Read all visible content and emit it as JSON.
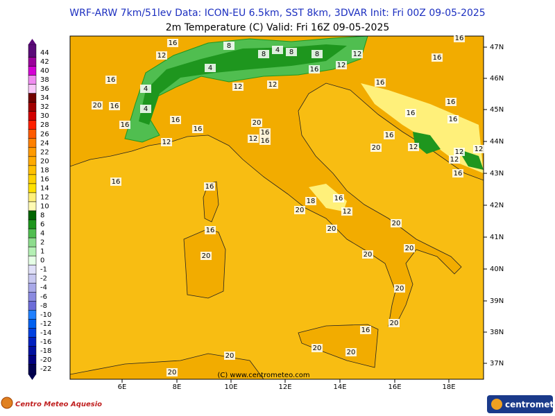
{
  "header": {
    "line1": "WRF-ARW 7km/51lev  Data: ICON-EU 6.5km, SST 8km, 3DVAR  Init: Fri 00Z 09-05-2025",
    "line2": "2m Temperature (C)  Valid: Fri 16Z 09-05-2025"
  },
  "colorbar": {
    "labels": [
      44,
      42,
      40,
      38,
      36,
      34,
      32,
      30,
      28,
      26,
      24,
      22,
      20,
      18,
      16,
      14,
      12,
      10,
      8,
      6,
      4,
      2,
      1,
      0,
      -1,
      -2,
      -4,
      -6,
      -8,
      -10,
      -12,
      -14,
      -16,
      -18,
      -20,
      -22
    ],
    "colors": [
      "#5a0a78",
      "#9b009b",
      "#d400d4",
      "#f08cf0",
      "#f8c8f8",
      "#700000",
      "#a00000",
      "#d20000",
      "#ff2000",
      "#ff5a00",
      "#ff8000",
      "#ff9a00",
      "#ffaa00",
      "#ffc000",
      "#ffd200",
      "#ffe100",
      "#fff07a",
      "#fffab4",
      "#006400",
      "#1e961e",
      "#50be50",
      "#8cdc8c",
      "#b4f0b4",
      "#e6ffe6",
      "#e0e0f8",
      "#c8c8f0",
      "#a8a8e8",
      "#8a8ae0",
      "#6c6cd8",
      "#2080ff",
      "#0060f0",
      "#0040e0",
      "#0020c0",
      "#0010a0",
      "#000080",
      "#000050"
    ]
  },
  "axes": {
    "lat_labels": [
      "47N",
      "46N",
      "45N",
      "44N",
      "43N",
      "42N",
      "41N",
      "40N",
      "39N",
      "38N",
      "37N"
    ],
    "lon_labels": [
      "6E",
      "8E",
      "10E",
      "12E",
      "14E",
      "16E",
      "18E"
    ]
  },
  "map": {
    "contour_labels": [
      16,
      12,
      8,
      8,
      4,
      8,
      8,
      12,
      12,
      16,
      16,
      16,
      16,
      4,
      4,
      12,
      12,
      16,
      20,
      16,
      4,
      16,
      16,
      16,
      20,
      16,
      16,
      12,
      12,
      16,
      16,
      16,
      16,
      20,
      12,
      12,
      12,
      12,
      16,
      16,
      16,
      18,
      16,
      12,
      20,
      20,
      16,
      20,
      20,
      20,
      20,
      20,
      20,
      16,
      20,
      20,
      20,
      20
    ],
    "copyright": "(C) www.centrometeo.com"
  },
  "footer": {
    "left_logo": "Centro Meteo Aquesio",
    "right_logo": "centrometeo"
  }
}
